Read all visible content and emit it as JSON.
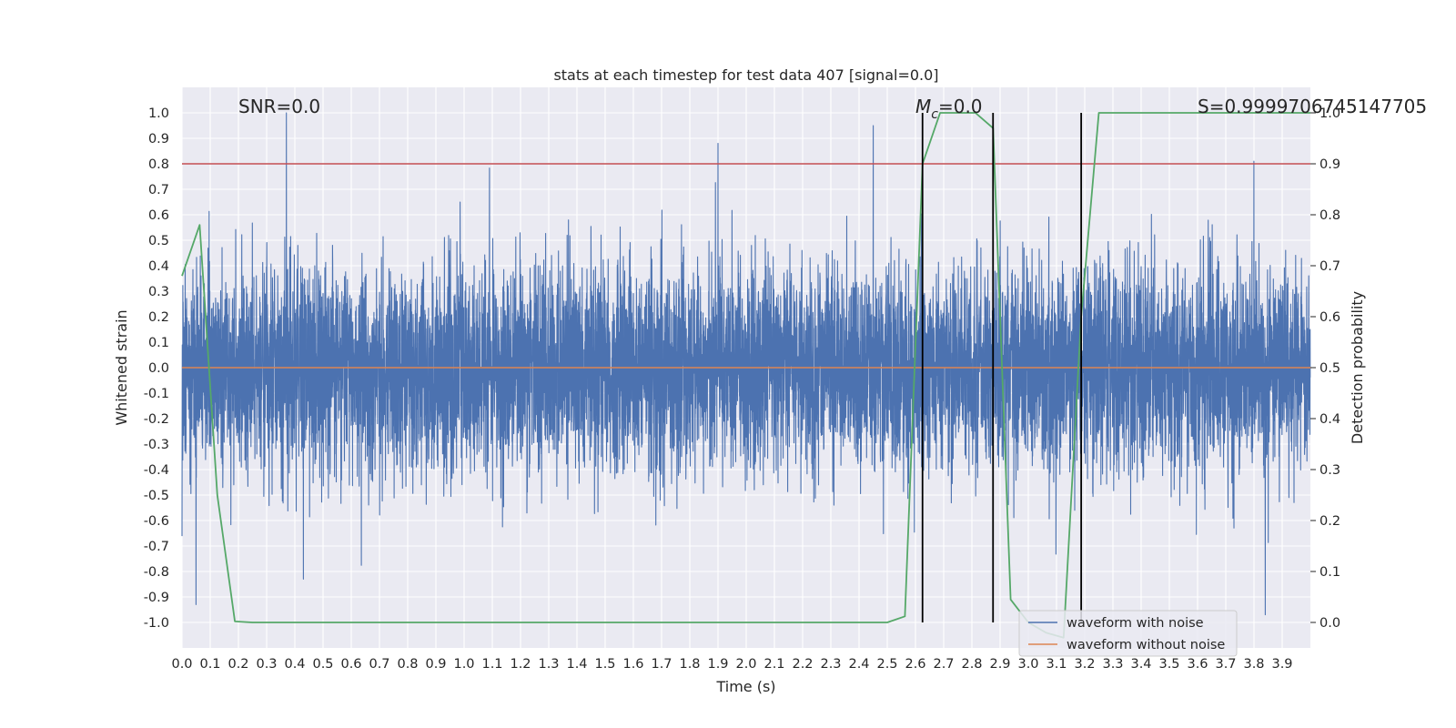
{
  "chart_data": {
    "type": "line",
    "title": "stats at each timestep for test data 407 [signal=0.0]",
    "xlabel": "Time (s)",
    "ylabel": "Whitened strain",
    "y2label": "Detection probability",
    "xlim": [
      0.0,
      4.0
    ],
    "ylim": [
      -1.1,
      1.1
    ],
    "y2lim": [
      -0.05,
      1.05
    ],
    "grid": true,
    "legend_position": "bottom-right",
    "x_ticks": [
      "0.0",
      "0.1",
      "0.2",
      "0.3",
      "0.4",
      "0.5",
      "0.6",
      "0.7",
      "0.8",
      "0.9",
      "1.0",
      "1.1",
      "1.2",
      "1.3",
      "1.4",
      "1.5",
      "1.6",
      "1.7",
      "1.8",
      "1.9",
      "2.0",
      "2.1",
      "2.2",
      "2.3",
      "2.4",
      "2.5",
      "2.6",
      "2.7",
      "2.8",
      "2.9",
      "3.0",
      "3.1",
      "3.2",
      "3.3",
      "3.4",
      "3.5",
      "3.6",
      "3.7",
      "3.8",
      "3.9"
    ],
    "y_ticks": [
      "-1.0",
      "-0.9",
      "-0.8",
      "-0.7",
      "-0.6",
      "-0.5",
      "-0.4",
      "-0.3",
      "-0.2",
      "-0.1",
      "0.0",
      "0.1",
      "0.2",
      "0.3",
      "0.4",
      "0.5",
      "0.6",
      "0.7",
      "0.8",
      "0.9",
      "1.0"
    ],
    "y2_ticks": [
      "0.0",
      "0.1",
      "0.2",
      "0.3",
      "0.4",
      "0.5",
      "0.6",
      "0.7",
      "0.8",
      "0.9",
      "1.0"
    ],
    "series": [
      {
        "name": "waveform with noise",
        "color": "#4c72b0",
        "axis": "left",
        "kind": "noise",
        "noise_sample_rate": 2048,
        "noise_std": 0.2,
        "notable_peaks": [
          {
            "x": 0.37,
            "y": 1.0
          },
          {
            "x": 0.05,
            "y": -0.93
          },
          {
            "x": 1.9,
            "y": 0.88
          },
          {
            "x": 2.45,
            "y": 0.95
          },
          {
            "x": 3.84,
            "y": -0.97
          },
          {
            "x": 0.43,
            "y": -0.83
          },
          {
            "x": 3.8,
            "y": 0.81
          }
        ]
      },
      {
        "name": "waveform without noise",
        "color": "#dd8452",
        "axis": "left",
        "x": [
          0.0,
          4.0
        ],
        "y": [
          0.0,
          0.0
        ]
      },
      {
        "color": "#55a868",
        "axis": "right",
        "x": [
          0.0,
          0.0625,
          0.125,
          0.1875,
          0.25,
          0.5,
          1.0,
          1.5,
          2.0,
          2.5,
          2.5625,
          2.625,
          2.6875,
          2.75,
          2.8125,
          2.875,
          2.9375,
          3.0,
          3.0625,
          3.125,
          3.1875,
          3.25,
          3.5,
          4.0
        ],
        "y": [
          0.68,
          0.78,
          0.25,
          0.002,
          0.0,
          0.0,
          0.0,
          0.0,
          0.0,
          0.0,
          0.012,
          0.9,
          1.0,
          1.0,
          1.0,
          0.97,
          0.045,
          0.0,
          -0.02,
          -0.03,
          0.6,
          1.0,
          1.0,
          1.0
        ]
      }
    ],
    "hlines": [
      {
        "y": 0.8,
        "color": "#c44e52"
      }
    ],
    "vlines": [
      {
        "x": 2.625,
        "ymin": 0.0,
        "ymax": 1.0,
        "color": "#000000",
        "axis": "right"
      },
      {
        "x": 2.875,
        "ymin": 0.0,
        "ymax": 1.0,
        "color": "#000000",
        "axis": "right"
      },
      {
        "x": 3.1875,
        "ymin": 0.0,
        "ymax": 1.0,
        "color": "#000000",
        "axis": "right"
      }
    ],
    "annotations": {
      "snr": "SNR=0.0",
      "mc_symbol": "M",
      "mc_subscript": "c",
      "mc_value": "=0.0",
      "s": "S=0.9999706745147705"
    },
    "legend": [
      "waveform with noise",
      "waveform without noise"
    ],
    "colors": {
      "background": "#eaeaf2",
      "grid": "#ffffff",
      "text": "#262626"
    }
  }
}
